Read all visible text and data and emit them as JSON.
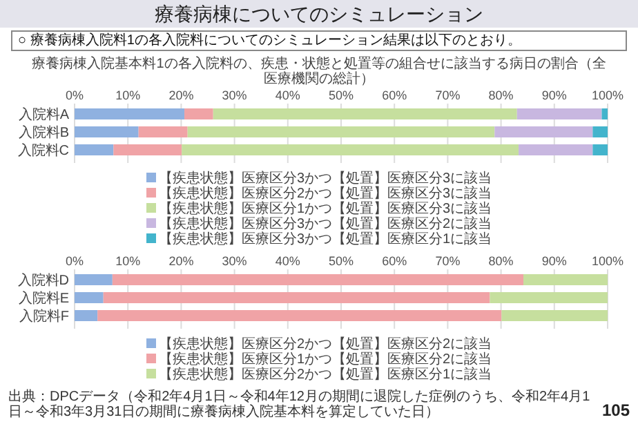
{
  "chart_data": [
    {
      "type": "bar",
      "orientation": "horizontal",
      "stacked": true,
      "title": "療養病棟についてのシミュレーション",
      "subtitle": "○ 療養病棟入院料1の各入院料についてのシミュレーション結果は以下のとおり。",
      "annotations": [
        "療養病棟入院基本料1の各入院料の、疾患・状態と処置等の組合せに該当する病日の割合（全医療機関の総計）"
      ],
      "categories": [
        "入院料A",
        "入院料B",
        "入院料C"
      ],
      "series": [
        {
          "name": "【疾患状態】医療区分3かつ【処置】医療区分3に該当",
          "color": "#8fb1e0",
          "values": [
            20.6,
            12.0,
            7.3
          ]
        },
        {
          "name": "【疾患状態】医療区分2かつ【処置】医療区分3に該当",
          "color": "#f0a3a6",
          "values": [
            5.4,
            9.2,
            12.8
          ]
        },
        {
          "name": "【疾患状態】医療区分1かつ【処置】医療区分3に該当",
          "color": "#c6df9e",
          "values": [
            57.0,
            57.6,
            63.2
          ]
        },
        {
          "name": "【疾患状態】医療区分3かつ【処置】医療区分2に該当",
          "color": "#c8b7e0",
          "values": [
            15.9,
            18.4,
            13.9
          ]
        },
        {
          "name": "【疾患状態】医療区分3かつ【処置】医療区分1に該当",
          "color": "#43b4cc",
          "values": [
            1.1,
            2.8,
            2.8
          ]
        }
      ],
      "xlim": [
        0,
        100
      ],
      "xticks": [
        {
          "value": 0,
          "label": "0%"
        },
        {
          "value": 10,
          "label": "10%"
        },
        {
          "value": 20,
          "label": "20%"
        },
        {
          "value": 30,
          "label": "30%"
        },
        {
          "value": 40,
          "label": "40%"
        },
        {
          "value": 50,
          "label": "50%"
        },
        {
          "value": 60,
          "label": "60%"
        },
        {
          "value": 70,
          "label": "70%"
        },
        {
          "value": 80,
          "label": "80%"
        },
        {
          "value": 90,
          "label": "90%"
        },
        {
          "value": 100,
          "label": "100%"
        }
      ],
      "grid": "x",
      "legend": "bottom"
    },
    {
      "type": "bar",
      "orientation": "horizontal",
      "stacked": true,
      "annotations": [
        "出典：DPCデータ（令和2年4月1日～令和4年12月の期間に退院した症例のうち、令和2年4月1日～令和3年3月31日の期間に療養病棟入院基本料を算定していた日）",
        "105"
      ],
      "categories": [
        "入院料D",
        "入院料E",
        "入院料F"
      ],
      "series": [
        {
          "name": "【疾患状態】医療区分2かつ【処置】医療区分2に該当",
          "color": "#8fb1e0",
          "values": [
            7.1,
            5.4,
            4.3
          ]
        },
        {
          "name": "【疾患状態】医療区分1かつ【処置】医療区分2に該当",
          "color": "#f0a3a6",
          "values": [
            77.1,
            72.5,
            75.8
          ]
        },
        {
          "name": "【疾患状態】医療区分2かつ【処置】医療区分1に該当",
          "color": "#c6df9e",
          "values": [
            15.8,
            22.1,
            19.9
          ]
        }
      ],
      "xlim": [
        0,
        100
      ],
      "xticks": [
        {
          "value": 0,
          "label": "0%"
        },
        {
          "value": 10,
          "label": "10%"
        },
        {
          "value": 20,
          "label": "20%"
        },
        {
          "value": 30,
          "label": "30%"
        },
        {
          "value": 40,
          "label": "40%"
        },
        {
          "value": 50,
          "label": "50%"
        },
        {
          "value": 60,
          "label": "60%"
        },
        {
          "value": 70,
          "label": "70%"
        },
        {
          "value": 80,
          "label": "80%"
        },
        {
          "value": 90,
          "label": "90%"
        },
        {
          "value": 100,
          "label": "100%"
        }
      ],
      "grid": "x",
      "legend": "bottom"
    }
  ]
}
